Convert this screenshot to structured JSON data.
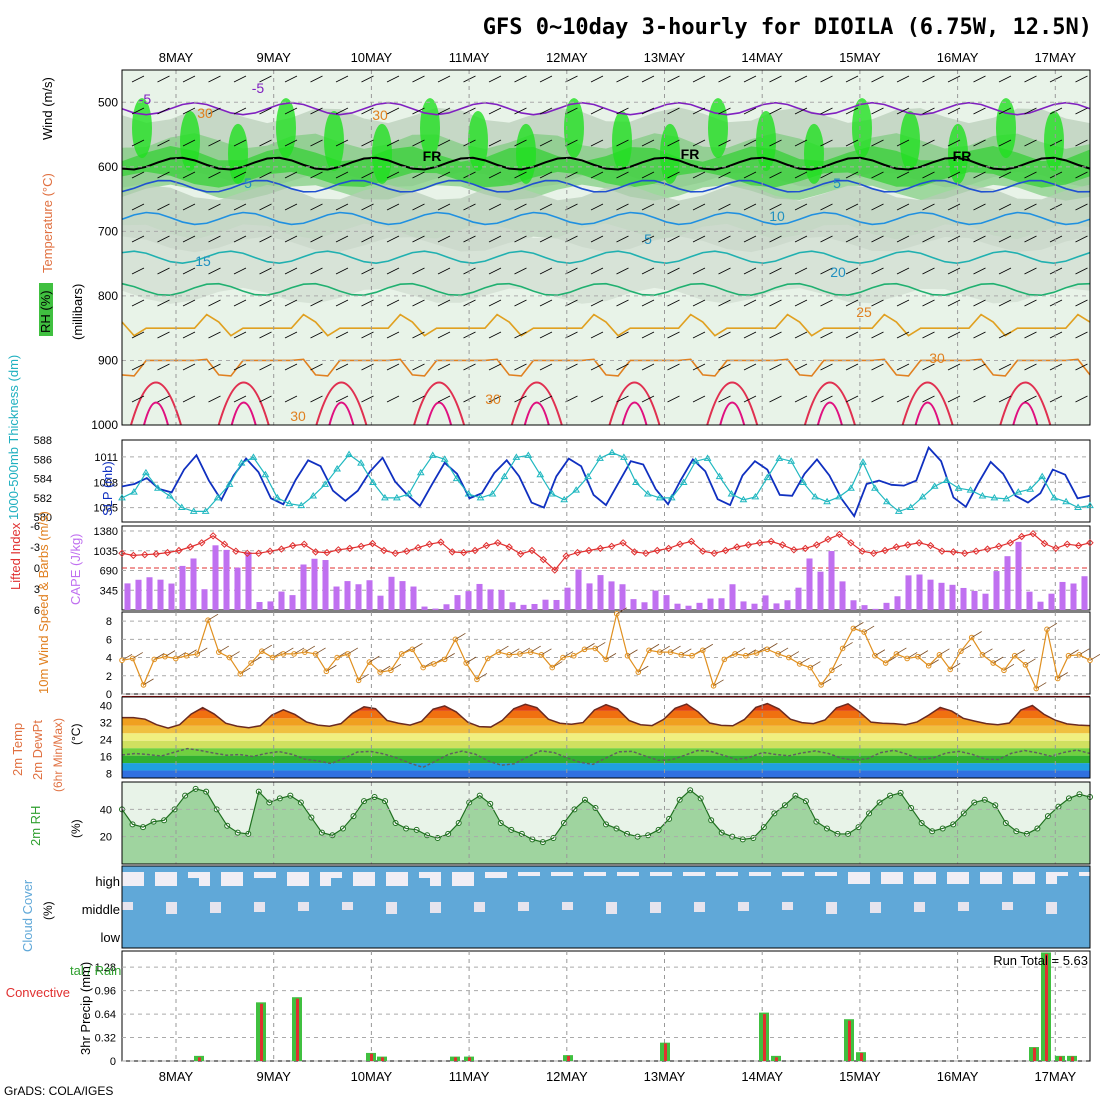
{
  "title": "GFS 0~10day 3-hourly for DIOILA (6.75W, 12.5N)",
  "credit": "GrADS: COLA/IGES",
  "colors": {
    "accent": "#b000b0",
    "slp": "#1030c0",
    "thick": "#20b8c0",
    "cape": "#c070f0",
    "li": "#e03030",
    "wind": "#e09020",
    "rh": "#30a030",
    "cloud": "#60a8d8",
    "precip_total": "#40c040",
    "precip_conv": "#e03030"
  },
  "chart_data": [
    {
      "panel": "upper-air",
      "type": "contour",
      "dates": [
        "8MAY",
        "9MAY",
        "10MAY",
        "11MAY",
        "12MAY",
        "13MAY",
        "14MAY",
        "15MAY",
        "16MAY",
        "17MAY"
      ],
      "ylabel_rh": "RH (%)",
      "ylabel_temp": "Temperature (°C)",
      "ylabel_wind": "Wind (m/s)",
      "ylabel_p": "(millibars)",
      "yticks": [
        "500",
        "600",
        "700",
        "800",
        "900",
        "1000"
      ],
      "ylim": [
        450,
        1000
      ],
      "isotherms": [
        {
          "label": "-5",
          "level": 510,
          "color": "#8020c0"
        },
        {
          "label": "FR",
          "level": 595,
          "color": "#000000"
        },
        {
          "label": "5",
          "level": 630,
          "color": "#2050d0"
        },
        {
          "label": "10",
          "level": 680,
          "color": "#2090e0"
        },
        {
          "label": "15",
          "level": 740,
          "color": "#20b0b0"
        },
        {
          "label": "20",
          "level": 790,
          "color": "#20b070"
        },
        {
          "label": "25",
          "level": 850,
          "color": "#e0a020"
        },
        {
          "label": "30",
          "level": 900,
          "color": "#e08020"
        }
      ],
      "labels": [
        "-5",
        "-5",
        "30",
        "30",
        "FR",
        "FR",
        "FR",
        "5",
        "5",
        "10",
        "5",
        "15",
        "20",
        "25",
        "30",
        "30",
        "30"
      ]
    },
    {
      "panel": "slp-thickness",
      "type": "line",
      "ylabel_left": "1000-500mb Thickness (dm)",
      "ylabel_right": "SLP (mb)",
      "yticks_thick": [
        "588",
        "586",
        "584",
        "582",
        "580"
      ],
      "yticks_slp": [
        "1011",
        "1008",
        "1005"
      ],
      "slp": [
        1007.5,
        1007.8,
        1008.5,
        1007.2,
        1006.8,
        1009.5,
        1011.2,
        1008.2,
        1005.9,
        1008.8,
        1010.8,
        1009.2,
        1006.1,
        1005.4,
        1008.3,
        1010.6,
        1009.9,
        1007.0,
        1005.8,
        1007.0,
        1009.3,
        1010.9,
        1008.1,
        1006.5,
        1005.2,
        1007.8,
        1010.3,
        1009.0,
        1006.1,
        1006.7,
        1009.1,
        1010.6,
        1008.7,
        1005.6,
        1005.0,
        1008.7,
        1010.8,
        1009.9,
        1006.5,
        1005.3,
        1007.9,
        1010.5,
        1010.1,
        1007.2,
        1005.4,
        1008.2,
        1010.7,
        1009.3,
        1006.0,
        1005.3,
        1008.8,
        1010.5,
        1009.5,
        1006.5,
        1006.4,
        1009.0,
        1010.7,
        1008.8,
        1006.0,
        1004.0,
        1007.8,
        1008.2,
        1007.7,
        1007.6,
        1008.2,
        1012.1,
        1010.5,
        1006.2,
        1005.1,
        1007.9,
        1010.4,
        1009.0,
        1006.4,
        1005.6,
        1006.7,
        1009.5,
        1008.9,
        1006.1,
        1006.4
      ],
      "thickness": [
        582.0,
        582.6,
        584.6,
        583.0,
        582.2,
        581.0,
        580.6,
        580.6,
        582.0,
        583.4,
        585.6,
        586.2,
        584.4,
        582.0,
        581.4,
        581.2,
        582.2,
        583.4,
        585.0,
        586.5,
        585.6,
        583.6,
        582.0,
        582.0,
        582.4,
        584.6,
        586.4,
        586.0,
        584.0,
        582.4,
        582.0,
        582.4,
        584.2,
        586.2,
        586.4,
        584.4,
        582.4,
        581.8,
        582.8,
        584.2,
        586.1,
        586.7,
        586.2,
        583.6,
        582.4,
        582.0,
        582.0,
        583.6,
        585.8,
        586.1,
        584.2,
        582.4,
        581.8,
        582.1,
        584.1,
        586.1,
        585.8,
        583.6,
        582.1,
        581.6,
        582.1,
        583.0,
        585.7,
        583.0,
        581.6,
        580.6,
        581.0,
        582.1,
        583.2,
        583.8,
        583.0,
        582.8,
        582.2,
        582.0,
        581.9,
        582.6,
        582.9,
        584.2,
        582.0,
        581.6,
        581.0,
        581.2
      ]
    },
    {
      "panel": "cape-li",
      "type": "bar",
      "ylabel_li": "Lifted Index",
      "ylabel_cape": "CAPE (J/kg)",
      "yticks_li": [
        "-6",
        "-3",
        "0",
        "3",
        "6"
      ],
      "yticks_cape": [
        "1380",
        "1035",
        "690",
        "345"
      ],
      "cape": [
        465,
        528,
        572,
        530,
        462,
        770,
        900,
        363,
        1130,
        1050,
        740,
        1010,
        140,
        150,
        322,
        260,
        795,
        895,
        873,
        410,
        505,
        450,
        520,
        250,
        580,
        505,
        410,
        60,
        25,
        100,
        260,
        330,
        455,
        360,
        350,
        135,
        90,
        105,
        180,
        175,
        390,
        705,
        465,
        610,
        500,
        450,
        190,
        135,
        340,
        260,
        110,
        75,
        125,
        200,
        205,
        450,
        150,
        110,
        255,
        115,
        170,
        390,
        900,
        670,
        1030,
        500,
        170,
        85,
        20,
        125,
        240,
        605,
        620,
        530,
        475,
        440,
        385,
        333,
        285,
        680,
        940,
        1190,
        320,
        145,
        285,
        490,
        463,
        590
      ],
      "li": [
        -2.1,
        -1.8,
        -1.9,
        -2.0,
        -2.2,
        -2.5,
        -3.0,
        -3.6,
        -4.6,
        -3.4,
        -2.4,
        -2.1,
        -2.1,
        -2.4,
        -2.7,
        -3.2,
        -3.4,
        -2.3,
        -2.2,
        -2.6,
        -2.8,
        -3.1,
        -3.5,
        -2.5,
        -2.1,
        -2.4,
        -2.9,
        -3.4,
        -3.7,
        -2.3,
        -2.2,
        -2.5,
        -3.2,
        -3.6,
        -3.0,
        -2.0,
        -2.5,
        -1.2,
        0.3,
        -1.7,
        -2.2,
        -2.5,
        -2.8,
        -3.1,
        -3.6,
        -2.3,
        -2.1,
        -2.5,
        -2.8,
        -3.4,
        -3.8,
        -2.4,
        -2.1,
        -2.5,
        -3.0,
        -3.3,
        -3.6,
        -3.8,
        -3.3,
        -2.6,
        -2.8,
        -3.3,
        -4.1,
        -4.8,
        -3.6,
        -2.4,
        -2.1,
        -2.5,
        -3.0,
        -3.3,
        -3.6,
        -3.2,
        -2.4,
        -2.3,
        -2.1,
        -2.4,
        -2.7,
        -3.1,
        -3.6,
        -4.5,
        -4.9,
        -3.5,
        -2.8,
        -3.4,
        -3.2,
        -3.6
      ]
    },
    {
      "panel": "wind10m",
      "type": "line",
      "ylabel": "10m Wind Speed & Barbs (m/s)",
      "yticks": [
        "8",
        "6",
        "4",
        "2",
        "0"
      ],
      "speed": [
        3.7,
        3.9,
        1.0,
        3.8,
        4.1,
        3.9,
        4.2,
        4.4,
        8.1,
        4.6,
        4.0,
        2.2,
        3.4,
        4.7,
        4.0,
        4.4,
        4.4,
        4.6,
        4.4,
        2.5,
        4.0,
        4.4,
        1.5,
        3.5,
        2.4,
        2.6,
        4.4,
        4.9,
        2.9,
        3.3,
        3.8,
        6.0,
        3.4,
        1.6,
        3.9,
        4.6,
        4.3,
        4.4,
        4.6,
        4.3,
        2.9,
        4.0,
        4.2,
        4.9,
        5.0,
        3.8,
        8.8,
        4.2,
        2.4,
        4.8,
        4.6,
        4.6,
        4.3,
        4.2,
        4.8,
        0.9,
        3.8,
        4.4,
        4.2,
        4.5,
        4.9,
        4.4,
        4.0,
        3.3,
        2.9,
        1.0,
        2.6,
        5.0,
        7.2,
        6.8,
        4.2,
        3.4,
        4.4,
        3.9,
        4.1,
        3.1,
        4.3,
        2.7,
        4.7,
        6.2,
        4.3,
        3.4,
        2.6,
        4.2,
        3.2,
        0.6,
        7.1,
        1.7,
        4.2,
        4.3,
        3.7
      ]
    },
    {
      "panel": "temperature2m",
      "type": "area",
      "ylabel": "2m Temp 2m DewPt (6hr Min/Max) (°C)",
      "yticks": [
        "40",
        "32",
        "24",
        "16",
        "8"
      ],
      "temp": [
        34.3,
        34.3,
        33.6,
        31.0,
        29.4,
        31.0,
        36.0,
        39.0,
        36.0,
        31.7,
        30.3,
        29.6,
        30.5,
        35.5,
        38.0,
        35.8,
        32.3,
        30.8,
        30.3,
        31.5,
        36.3,
        39.4,
        38.5,
        33.0,
        31.7,
        30.8,
        32.6,
        38.3,
        39.8,
        37.0,
        32.2,
        30.1,
        29.9,
        33.0,
        38.5,
        40.6,
        39.0,
        33.6,
        31.7,
        31.2,
        32.0,
        37.9,
        40.4,
        38.4,
        33.0,
        31.0,
        30.6,
        33.5,
        38.7,
        40.7,
        37.0,
        31.8,
        30.7,
        30.5,
        33.4,
        39.1,
        40.9,
        38.4,
        33.6,
        32.0,
        31.5,
        33.2,
        38.9,
        40.8,
        37.0,
        32.2,
        31.7,
        31.5,
        31.0,
        32.3,
        35.5,
        39.1,
        37.4,
        34.0,
        32.7,
        31.5,
        31.0,
        31.8,
        37.9,
        40.0,
        35.9,
        33.1,
        31.4,
        30.8,
        30.6
      ],
      "dewpt": [
        16.8,
        17.5,
        17.0,
        16.3,
        18.1,
        19.8,
        18.9,
        17.7,
        16.7,
        17.0,
        16.1,
        17.5,
        18.4,
        17.1,
        14.8,
        14.0,
        12.8,
        15.3,
        18.2,
        18.5,
        17.3,
        15.4,
        13.0,
        11.0,
        14.0,
        17.2,
        18.6,
        17.2,
        14.0,
        12.0,
        12.7,
        15.9,
        18.7,
        18.0,
        15.5,
        13.4,
        12.4,
        15.4,
        18.3,
        18.5,
        16.3,
        14.3,
        14.5,
        16.6,
        18.9,
        18.5,
        16.6,
        14.6,
        15.8,
        18.0,
        17.0,
        16.4,
        17.8,
        18.7,
        17.5,
        15.3,
        14.3,
        15.1,
        17.9,
        19.0,
        17.2,
        14.7,
        15.4,
        17.7,
        18.5,
        17.1,
        14.8,
        14.7,
        17.6,
        18.9,
        17.8,
        16.2,
        18.0,
        19.1,
        17.5
      ]
    },
    {
      "panel": "rh2m",
      "type": "area",
      "ylabel": "2m RH",
      "yunit": "(%)",
      "yticks": [
        "40",
        "20"
      ],
      "rh": [
        40,
        29,
        27,
        31,
        32,
        40,
        50,
        55,
        53,
        40,
        28,
        23,
        22,
        53,
        45,
        48,
        50,
        45,
        34,
        23,
        21,
        26,
        35,
        46,
        49,
        46,
        30,
        26,
        25,
        21,
        19,
        22,
        30,
        45,
        50,
        44,
        30,
        25,
        22,
        18,
        16,
        19,
        30,
        40,
        47,
        41,
        29,
        26,
        22,
        20,
        21,
        25,
        33,
        47,
        54,
        48,
        32,
        23,
        20,
        18,
        19,
        27,
        37,
        43,
        50,
        46,
        31,
        26,
        22,
        22,
        27,
        37,
        45,
        50,
        52,
        41,
        30,
        24,
        26,
        29,
        37,
        45,
        47,
        43,
        30,
        24,
        22,
        26,
        35,
        42,
        48,
        51,
        49
      ]
    },
    {
      "panel": "cloud",
      "type": "bar",
      "ylabel": "Cloud Cover (%)",
      "layers": [
        "high",
        "middle",
        "low"
      ]
    },
    {
      "panel": "precip",
      "type": "bar",
      "ylabel_left": "Total / Rain Convective",
      "ylabel": "3hr Precip (mm)",
      "yticks": [
        "1.28",
        "0.96",
        "0.64",
        "0.32",
        "0"
      ],
      "run_total_label": "Run Total = 5.63",
      "total": [
        0.07,
        0.8,
        0.87,
        0.11,
        0.06,
        0.06,
        0.06,
        0.08,
        0.25,
        0.66,
        0.07,
        0.57,
        0.12,
        0.19,
        1.48,
        0.07,
        0.07
      ],
      "conv": [
        0.05,
        0.78,
        0.85,
        0.1,
        0.05,
        0.05,
        0.05,
        0.07,
        0.24,
        0.64,
        0.05,
        0.55,
        0.11,
        0.18,
        1.46,
        0.06,
        0.06
      ]
    }
  ]
}
